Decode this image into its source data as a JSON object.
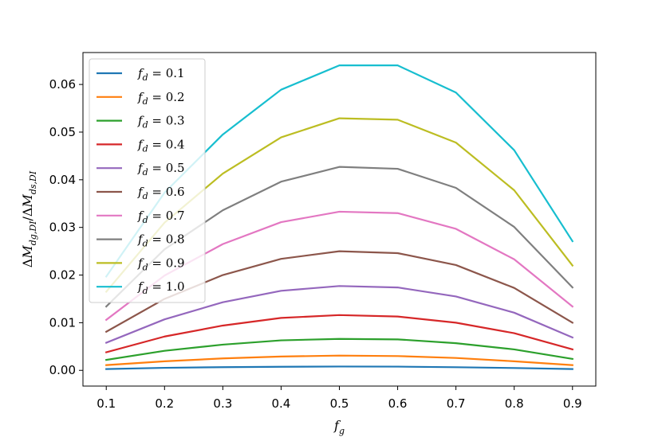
{
  "chart_data": {
    "type": "line",
    "xlabel": "f_g",
    "ylabel": "ΔM_{dg,DI}/ΔM_{ds,DI}",
    "xlim": [
      0.06,
      0.94
    ],
    "ylim": [
      -0.0033,
      0.0667
    ],
    "xticks": [
      0.1,
      0.2,
      0.3,
      0.4,
      0.5,
      0.6,
      0.7,
      0.8,
      0.9
    ],
    "xtick_labels": [
      "0.1",
      "0.2",
      "0.3",
      "0.4",
      "0.5",
      "0.6",
      "0.7",
      "0.8",
      "0.9"
    ],
    "yticks": [
      0.0,
      0.01,
      0.02,
      0.03,
      0.04,
      0.05,
      0.06
    ],
    "ytick_labels": [
      "0.00",
      "0.01",
      "0.02",
      "0.03",
      "0.04",
      "0.05",
      "0.06"
    ],
    "grid": false,
    "legend_position": "upper-left",
    "x": [
      0.1,
      0.2,
      0.3,
      0.4,
      0.5,
      0.6,
      0.7,
      0.8,
      0.9
    ],
    "series": [
      {
        "name": "f_d = 0.1",
        "legend_sym": "f",
        "legend_sub": "d",
        "legend_val": " = 0.1",
        "color": "#1f77b4",
        "values": [
          0.00027,
          0.00053,
          0.00067,
          0.00075,
          0.0008,
          0.00078,
          0.00066,
          0.00049,
          0.00027
        ]
      },
      {
        "name": "f_d = 0.2",
        "legend_sym": "f",
        "legend_sub": "d",
        "legend_val": " = 0.2",
        "color": "#ff7f0e",
        "values": [
          0.0011,
          0.0019,
          0.0025,
          0.0029,
          0.0031,
          0.003,
          0.0026,
          0.0019,
          0.0011
        ]
      },
      {
        "name": "f_d = 0.3",
        "legend_sym": "f",
        "legend_sub": "d",
        "legend_val": " = 0.3",
        "color": "#2ca02c",
        "values": [
          0.0022,
          0.0041,
          0.0054,
          0.0063,
          0.0066,
          0.0065,
          0.0057,
          0.0044,
          0.0024
        ]
      },
      {
        "name": "f_d = 0.4",
        "legend_sym": "f",
        "legend_sub": "d",
        "legend_val": " = 0.4",
        "color": "#d62728",
        "values": [
          0.0038,
          0.0071,
          0.0094,
          0.011,
          0.0116,
          0.0113,
          0.01,
          0.0078,
          0.0044
        ]
      },
      {
        "name": "f_d = 0.5",
        "legend_sym": "f",
        "legend_sub": "d",
        "legend_val": " = 0.5",
        "color": "#9467bd",
        "values": [
          0.0058,
          0.0107,
          0.0143,
          0.0167,
          0.0177,
          0.0174,
          0.0155,
          0.0121,
          0.0069
        ]
      },
      {
        "name": "f_d = 0.6",
        "legend_sym": "f",
        "legend_sub": "d",
        "legend_val": " = 0.6",
        "color": "#8c564b",
        "values": [
          0.0081,
          0.015,
          0.02,
          0.0234,
          0.025,
          0.0246,
          0.0221,
          0.0173,
          0.01
        ]
      },
      {
        "name": "f_d = 0.7",
        "legend_sym": "f",
        "legend_sub": "d",
        "legend_val": " = 0.7",
        "color": "#e377c2",
        "values": [
          0.0106,
          0.0199,
          0.0265,
          0.0311,
          0.0333,
          0.033,
          0.0297,
          0.0233,
          0.0134
        ]
      },
      {
        "name": "f_d = 0.8",
        "legend_sym": "f",
        "legend_sub": "d",
        "legend_val": " = 0.8",
        "color": "#7f7f7f",
        "values": [
          0.0134,
          0.0254,
          0.0336,
          0.0396,
          0.0427,
          0.0423,
          0.0383,
          0.0301,
          0.0174
        ]
      },
      {
        "name": "f_d = 0.9",
        "legend_sym": "f",
        "legend_sub": "d",
        "legend_val": " = 0.9",
        "color": "#bcbd22",
        "values": [
          0.0165,
          0.031,
          0.0413,
          0.0489,
          0.0529,
          0.0526,
          0.0478,
          0.0378,
          0.022
        ]
      },
      {
        "name": "f_d = 1.0",
        "legend_sym": "f",
        "legend_sub": "d",
        "legend_val": " = 1.0",
        "color": "#17becf",
        "values": [
          0.0197,
          0.0373,
          0.0495,
          0.0589,
          0.064,
          0.064,
          0.0583,
          0.0462,
          0.0271
        ]
      }
    ]
  }
}
